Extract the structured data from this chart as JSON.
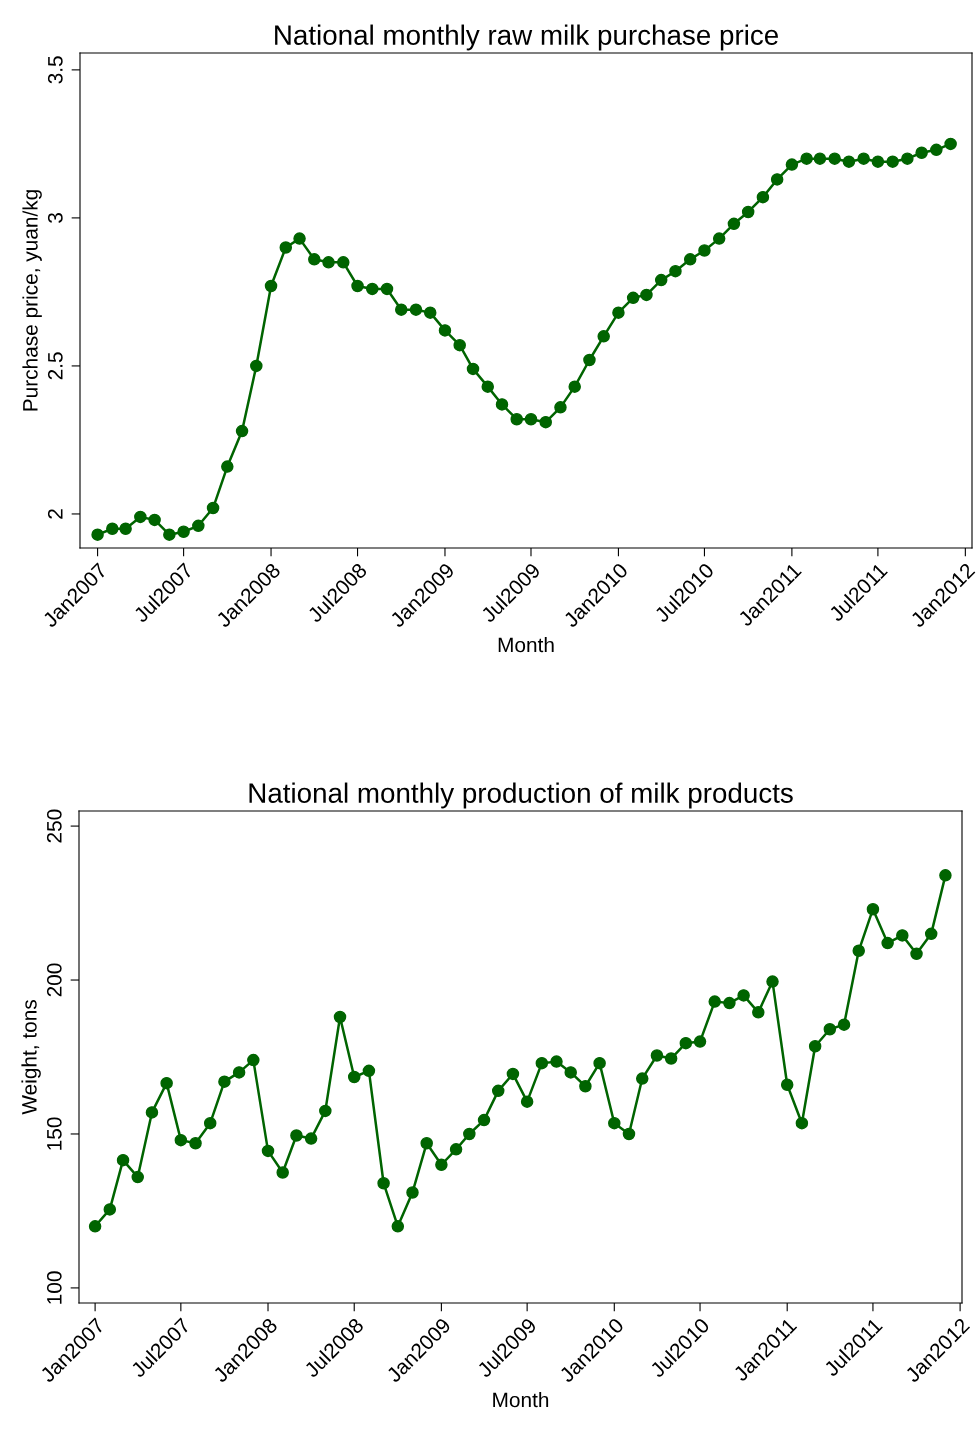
{
  "chart_data": [
    {
      "type": "line",
      "title": "National monthly raw milk purchase price",
      "xlabel": "Month",
      "ylabel": "Purchase price, yuan/kg",
      "marker": "circle",
      "line_style": "solid",
      "grid": false,
      "x": [
        "2007-01",
        "2007-02",
        "2007-03",
        "2007-04",
        "2007-05",
        "2007-06",
        "2007-07",
        "2007-08",
        "2007-09",
        "2007-10",
        "2007-11",
        "2007-12",
        "2008-01",
        "2008-02",
        "2008-03",
        "2008-04",
        "2008-05",
        "2008-06",
        "2008-07",
        "2008-08",
        "2008-09",
        "2008-10",
        "2008-11",
        "2008-12",
        "2009-01",
        "2009-02",
        "2009-03",
        "2009-04",
        "2009-05",
        "2009-06",
        "2009-07",
        "2009-08",
        "2009-09",
        "2009-10",
        "2009-11",
        "2009-12",
        "2010-01",
        "2010-02",
        "2010-03",
        "2010-04",
        "2010-05",
        "2010-06",
        "2010-07",
        "2010-08",
        "2010-09",
        "2010-10",
        "2010-11",
        "2010-12",
        "2011-01",
        "2011-02",
        "2011-03",
        "2011-04",
        "2011-05",
        "2011-06",
        "2011-07",
        "2011-08",
        "2011-09",
        "2011-10",
        "2011-11",
        "2011-12"
      ],
      "series": [
        {
          "color": "#006400",
          "values": [
            1.93,
            1.95,
            1.95,
            1.99,
            1.98,
            1.93,
            1.94,
            1.96,
            2.02,
            2.16,
            2.28,
            2.5,
            2.77,
            2.9,
            2.93,
            2.86,
            2.85,
            2.85,
            2.77,
            2.76,
            2.76,
            2.69,
            2.69,
            2.68,
            2.62,
            2.57,
            2.49,
            2.43,
            2.37,
            2.32,
            2.32,
            2.31,
            2.36,
            2.43,
            2.52,
            2.6,
            2.68,
            2.73,
            2.74,
            2.79,
            2.82,
            2.86,
            2.89,
            2.93,
            2.98,
            3.02,
            3.07,
            3.13,
            3.18,
            3.2,
            3.2,
            3.2,
            3.19,
            3.2,
            3.19,
            3.19,
            3.2,
            3.22,
            3.23,
            3.25
          ]
        }
      ],
      "xlim": [
        "2006-11-25",
        "2012-01-15"
      ],
      "xticks": [
        {
          "value": "2007-01",
          "label": "Jan2007"
        },
        {
          "value": "2007-07",
          "label": "Jul2007"
        },
        {
          "value": "2008-01",
          "label": "Jan2008"
        },
        {
          "value": "2008-07",
          "label": "Jul2008"
        },
        {
          "value": "2009-01",
          "label": "Jan2009"
        },
        {
          "value": "2009-07",
          "label": "Jul2009"
        },
        {
          "value": "2010-01",
          "label": "Jan2010"
        },
        {
          "value": "2010-07",
          "label": "Jul2010"
        },
        {
          "value": "2011-01",
          "label": "Jan2011"
        },
        {
          "value": "2011-07",
          "label": "Jul2011"
        },
        {
          "value": "2012-01",
          "label": "Jan2012"
        }
      ],
      "ylim": [
        1.885,
        3.557
      ],
      "yticks": [
        2,
        2.5,
        3,
        3.5
      ]
    },
    {
      "type": "line",
      "title": "National monthly production of milk products",
      "xlabel": "Month",
      "ylabel": "Weight, tons",
      "marker": "circle",
      "line_style": "solid",
      "grid": false,
      "x": [
        "2007-01",
        "2007-02",
        "2007-03",
        "2007-04",
        "2007-05",
        "2007-06",
        "2007-07",
        "2007-08",
        "2007-09",
        "2007-10",
        "2007-11",
        "2007-12",
        "2008-01",
        "2008-02",
        "2008-03",
        "2008-04",
        "2008-05",
        "2008-06",
        "2008-07",
        "2008-08",
        "2008-09",
        "2008-10",
        "2008-11",
        "2008-12",
        "2009-01",
        "2009-02",
        "2009-03",
        "2009-04",
        "2009-05",
        "2009-06",
        "2009-07",
        "2009-08",
        "2009-09",
        "2009-10",
        "2009-11",
        "2009-12",
        "2010-01",
        "2010-02",
        "2010-03",
        "2010-04",
        "2010-05",
        "2010-06",
        "2010-07",
        "2010-08",
        "2010-09",
        "2010-10",
        "2010-11",
        "2010-12",
        "2011-01",
        "2011-02",
        "2011-03",
        "2011-04",
        "2011-05",
        "2011-06",
        "2011-07",
        "2011-08",
        "2011-09",
        "2011-10",
        "2011-11",
        "2011-12"
      ],
      "series": [
        {
          "color": "#006400",
          "values": [
            120,
            125.5,
            141.5,
            136,
            157,
            166.5,
            148,
            147,
            153.5,
            167,
            170,
            174,
            144.5,
            137.5,
            149.5,
            148.5,
            157.5,
            188,
            168.5,
            170.5,
            134,
            120,
            131,
            147,
            140,
            145,
            150,
            154.5,
            164,
            169.5,
            160.5,
            173,
            173.5,
            170,
            165.5,
            173,
            153.5,
            150,
            168,
            175.5,
            174.5,
            179.5,
            180,
            193,
            192.5,
            195,
            189.5,
            199.5,
            166,
            153.5,
            178.5,
            184,
            185.5,
            209.5,
            223,
            212,
            214.5,
            208.5,
            215,
            234
          ]
        }
      ],
      "xlim": [
        "2006-11-28",
        "2012-01-05"
      ],
      "xticks": [
        {
          "value": "2007-01",
          "label": "Jan2007"
        },
        {
          "value": "2007-07",
          "label": "Jul2007"
        },
        {
          "value": "2008-01",
          "label": "Jan2008"
        },
        {
          "value": "2008-07",
          "label": "Jul2008"
        },
        {
          "value": "2009-01",
          "label": "Jan2009"
        },
        {
          "value": "2009-07",
          "label": "Jul2009"
        },
        {
          "value": "2010-01",
          "label": "Jan2010"
        },
        {
          "value": "2010-07",
          "label": "Jul2010"
        },
        {
          "value": "2011-01",
          "label": "Jan2011"
        },
        {
          "value": "2011-07",
          "label": "Jul2011"
        },
        {
          "value": "2012-01",
          "label": "Jan2012"
        }
      ],
      "ylim": [
        95.1,
        254.9
      ],
      "yticks": [
        100,
        150,
        200,
        250
      ]
    }
  ]
}
